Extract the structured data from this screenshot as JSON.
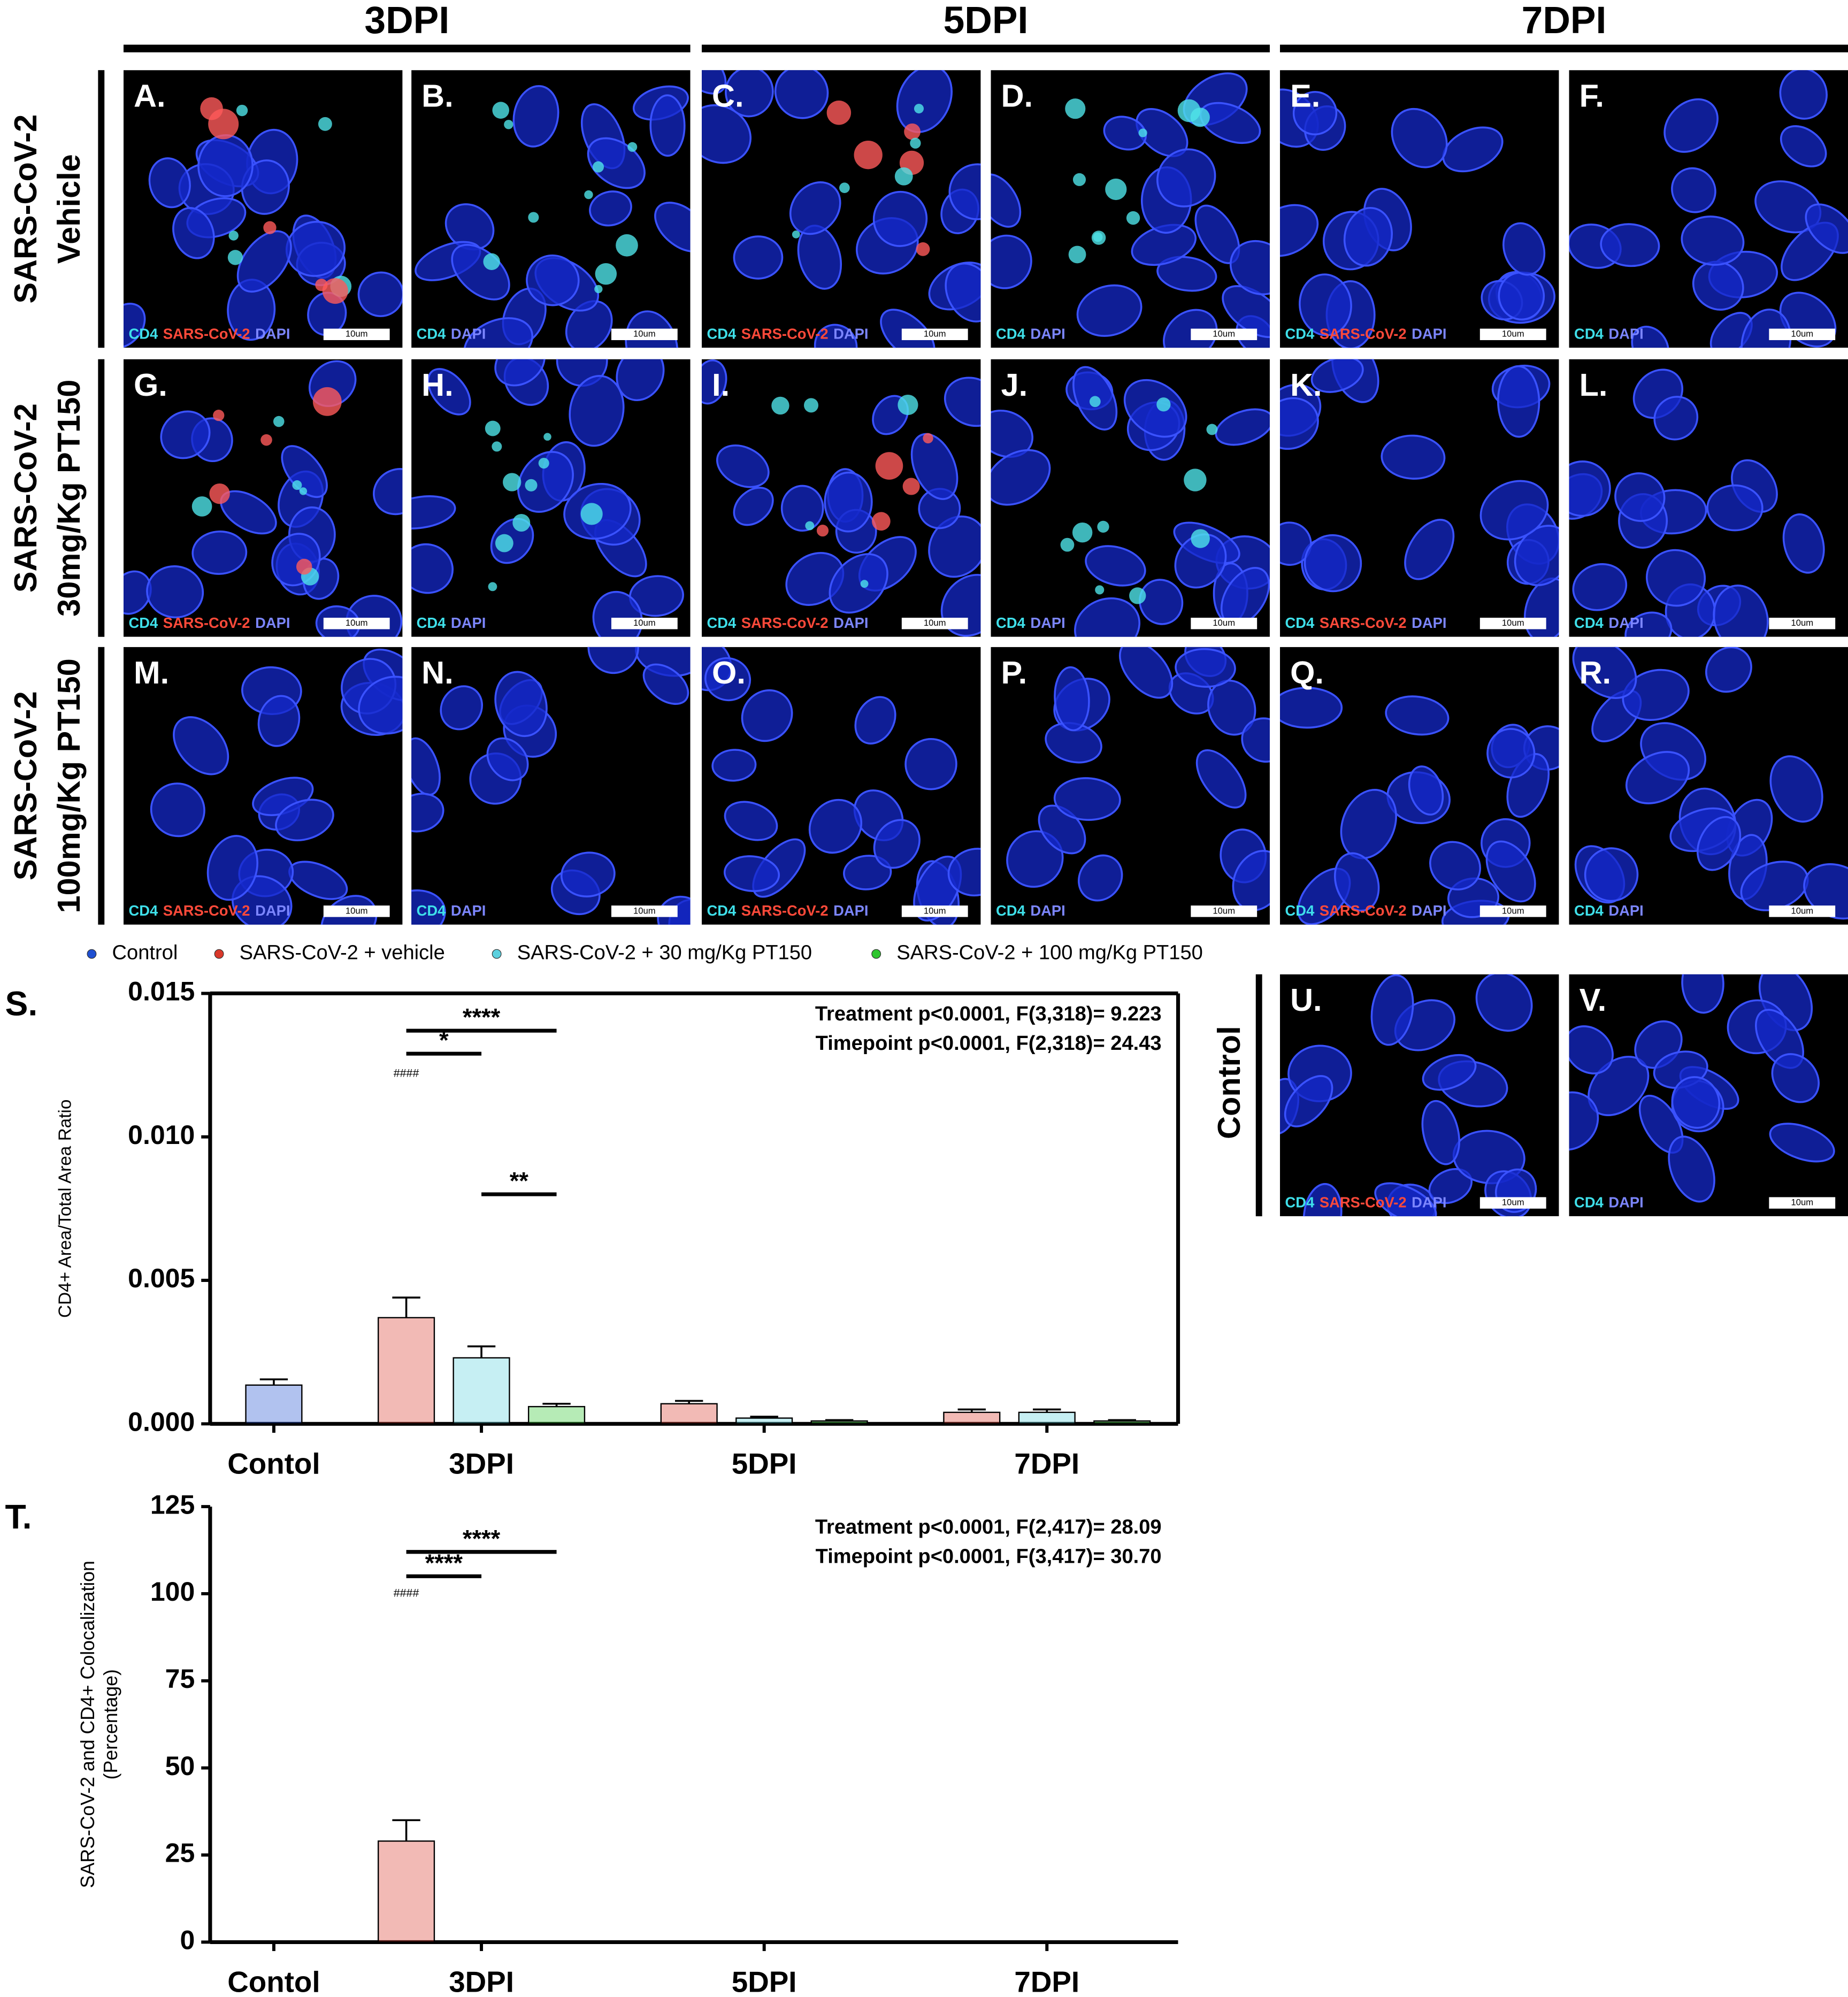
{
  "image_grid": {
    "columns": [
      "3DPI",
      "5DPI",
      "7DPI"
    ],
    "rows": [
      [
        "SARS-CoV-2",
        "Vehicle"
      ],
      [
        "SARS-CoV-2",
        "30mg/Kg PT150"
      ],
      [
        "SARS-CoV-2",
        "100mg/Kg PT150"
      ]
    ],
    "control_row": "Control",
    "panels": [
      "A.",
      "B.",
      "C.",
      "D.",
      "E.",
      "F.",
      "G.",
      "H.",
      "I.",
      "J.",
      "K.",
      "L.",
      "M.",
      "N.",
      "O.",
      "P.",
      "Q.",
      "R."
    ],
    "control_panels": [
      "U.",
      "V."
    ],
    "merged_channels": [
      "CD4",
      "SARS-CoV-2",
      "DAPI"
    ],
    "split_channels": [
      "CD4",
      "DAPI"
    ],
    "scale_bar": "10um"
  },
  "chart_data": [
    {
      "type": "bar",
      "letter": "S.",
      "y_label": "CD4+ Area/Total Area Ratio",
      "categories": [
        "Contol",
        "3DPI",
        "5DPI",
        "7DPI"
      ],
      "series": [
        {
          "name": "Control",
          "color": "#1f4fd1",
          "values": [
            0.00135,
            null,
            null,
            null
          ],
          "errors": [
            0.0002,
            null,
            null,
            null
          ]
        },
        {
          "name": "SARS-CoV-2 + vehicle",
          "color": "#d9382a",
          "values": [
            null,
            0.0037,
            0.0007,
            0.0004
          ],
          "errors": [
            null,
            0.0007,
            0.0001,
            0.0001
          ]
        },
        {
          "name": "SARS-CoV-2 + 30 mg/Kg PT150",
          "color": "#5cd0de",
          "values": [
            null,
            0.0023,
            0.0002,
            0.0004
          ],
          "errors": [
            null,
            0.0004,
            5e-05,
            0.0001
          ]
        },
        {
          "name": "SARS-CoV-2 + 100 mg/Kg PT150",
          "color": "#2fc62f",
          "values": [
            null,
            0.0006,
            0.0001,
            0.0001
          ],
          "errors": [
            null,
            0.0001,
            3e-05,
            3e-05
          ]
        }
      ],
      "ylim": [
        0,
        0.015
      ],
      "yticks": [
        {
          "value": 0,
          "label": "0.000"
        },
        {
          "value": 0.005,
          "label": "0.005"
        },
        {
          "value": 0.01,
          "label": "0.010"
        },
        {
          "value": 0.015,
          "label": "0.015"
        }
      ],
      "frame": true,
      "annotations": [
        "Treatment p<0.0001, F(3,318)= 9.223",
        "Timepoint p<0.0001, F(2,318)= 24.43"
      ],
      "significance": [
        {
          "label": "****",
          "category": "3DPI",
          "between": [
            "SARS-CoV-2 + vehicle",
            "SARS-CoV-2 + 100 mg/Kg PT150"
          ],
          "y": 0.0137
        },
        {
          "label": "*",
          "category": "3DPI",
          "between": [
            "SARS-CoV-2 + vehicle",
            "SARS-CoV-2 + 30 mg/Kg PT150"
          ],
          "y": 0.0129
        },
        {
          "label": "**",
          "category": "3DPI",
          "between": [
            "SARS-CoV-2 + 30 mg/Kg PT150",
            "SARS-CoV-2 + 100 mg/Kg PT150"
          ],
          "y": 0.008
        }
      ],
      "marks": [
        {
          "label": "####",
          "category": "3DPI",
          "series": "SARS-CoV-2 + vehicle",
          "y": 0.0122
        }
      ]
    },
    {
      "type": "bar",
      "letter": "T.",
      "y_label": [
        "SARS-CoV-2 and CD4+ Colocalization",
        "(Percentage)"
      ],
      "categories": [
        "Contol",
        "3DPI",
        "5DPI",
        "7DPI"
      ],
      "series": [
        {
          "color": "#1f4fd1",
          "values": [
            0,
            null,
            null,
            null
          ],
          "errors": [
            0,
            null,
            null,
            null
          ]
        },
        {
          "color": "#d9382a",
          "values": [
            null,
            29,
            0,
            0
          ],
          "errors": [
            null,
            6,
            0,
            0
          ]
        },
        {
          "color": "#5cd0de",
          "values": [
            null,
            0,
            0,
            0
          ],
          "errors": [
            null,
            0,
            0,
            0
          ]
        },
        {
          "color": "#2fc62f",
          "values": [
            null,
            0,
            0,
            0
          ],
          "errors": [
            null,
            0,
            0,
            0
          ]
        }
      ],
      "ylim": [
        0,
        125
      ],
      "yticks": [
        0,
        25,
        50,
        75,
        100,
        125
      ],
      "frame": false,
      "annotations": [
        "Treatment p<0.0001, F(2,417)= 28.09",
        "Timepoint p<0.0001, F(3,417)= 30.70"
      ],
      "significance": [
        {
          "label": "****",
          "category": "3DPI",
          "between": [
            1,
            3
          ],
          "y": 112
        },
        {
          "label": "****",
          "category": "3DPI",
          "between": [
            1,
            2
          ],
          "y": 105
        }
      ],
      "marks": [
        {
          "label": "####",
          "category": "3DPI",
          "series": 1,
          "y": 100
        }
      ]
    }
  ]
}
